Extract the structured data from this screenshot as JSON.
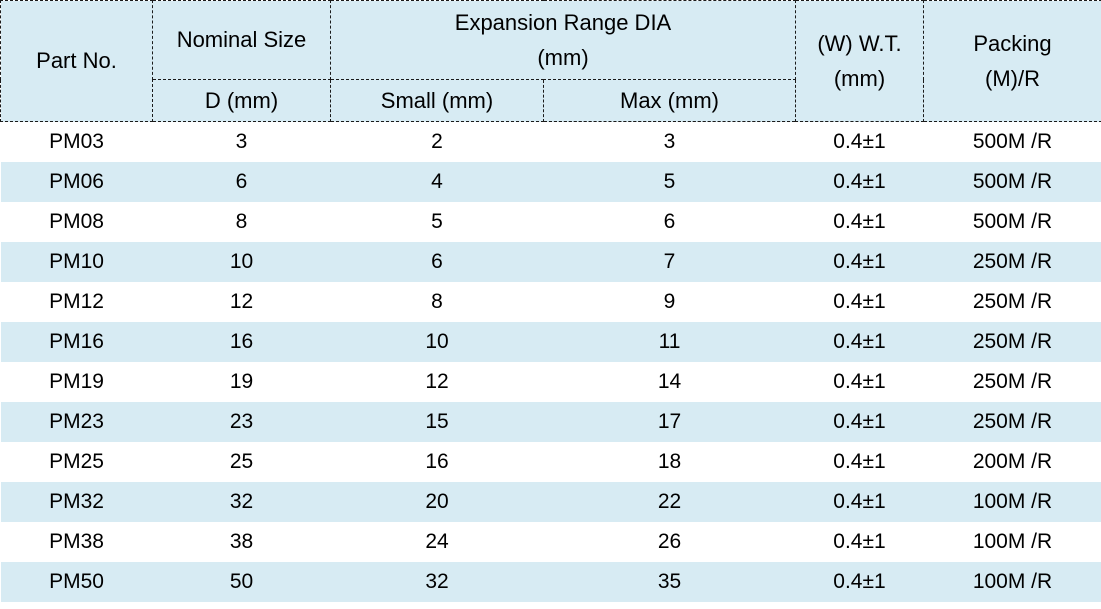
{
  "table": {
    "header": {
      "part_no": "Part No.",
      "nominal_size": "Nominal Size",
      "nominal_size_sub": "D (mm)",
      "expansion_range_line1": "Expansion Range DIA",
      "expansion_range_line2": "(mm)",
      "small_sub": "Small (mm)",
      "max_sub": "Max (mm)",
      "wt_line1": "(W) W.T.",
      "wt_line2": "(mm)",
      "packing_line1": "Packing",
      "packing_line2": "(M)/R"
    },
    "rows": [
      {
        "part_no": "PM03",
        "d": "3",
        "small": "2",
        "max": "3",
        "wt": "0.4±1",
        "packing": "500M /R"
      },
      {
        "part_no": "PM06",
        "d": "6",
        "small": "4",
        "max": "5",
        "wt": "0.4±1",
        "packing": "500M /R"
      },
      {
        "part_no": "PM08",
        "d": "8",
        "small": "5",
        "max": "6",
        "wt": "0.4±1",
        "packing": "500M /R"
      },
      {
        "part_no": "PM10",
        "d": "10",
        "small": "6",
        "max": "7",
        "wt": "0.4±1",
        "packing": "250M /R"
      },
      {
        "part_no": "PM12",
        "d": "12",
        "small": "8",
        "max": "9",
        "wt": "0.4±1",
        "packing": "250M /R"
      },
      {
        "part_no": "PM16",
        "d": "16",
        "small": "10",
        "max": "11",
        "wt": "0.4±1",
        "packing": "250M /R"
      },
      {
        "part_no": "PM19",
        "d": "19",
        "small": "12",
        "max": "14",
        "wt": "0.4±1",
        "packing": "250M /R"
      },
      {
        "part_no": "PM23",
        "d": "23",
        "small": "15",
        "max": "17",
        "wt": "0.4±1",
        "packing": "250M /R"
      },
      {
        "part_no": "PM25",
        "d": "25",
        "small": "16",
        "max": "18",
        "wt": "0.4±1",
        "packing": "200M /R"
      },
      {
        "part_no": "PM32",
        "d": "32",
        "small": "20",
        "max": "22",
        "wt": "0.4±1",
        "packing": "100M /R"
      },
      {
        "part_no": "PM38",
        "d": "38",
        "small": "24",
        "max": "26",
        "wt": "0.4±1",
        "packing": "100M /R"
      },
      {
        "part_no": "PM50",
        "d": "50",
        "small": "32",
        "max": "35",
        "wt": "0.4±1",
        "packing": "100M /R"
      }
    ]
  },
  "colors": {
    "band": "#d7ebf3",
    "border": "#1a1a1a",
    "text": "#000000"
  }
}
